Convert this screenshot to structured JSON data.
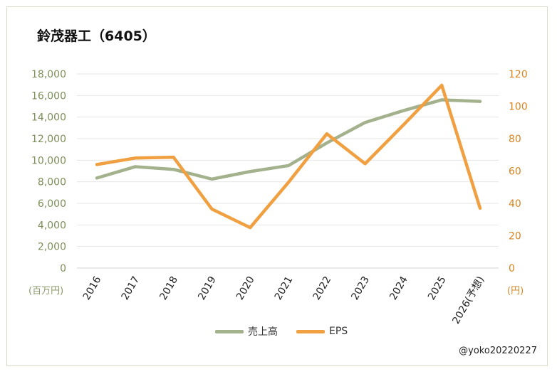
{
  "chart_data": {
    "type": "line",
    "title": "鈴茂器工（6405）",
    "categories": [
      "2016",
      "2017",
      "2018",
      "2019",
      "2020",
      "2021",
      "2022",
      "2023",
      "2024",
      "2025",
      "2026(予想)"
    ],
    "series": [
      {
        "name": "売上高",
        "axis": "left",
        "color": "#a3b18c",
        "values": [
          8350,
          9400,
          9150,
          8250,
          8950,
          9500,
          11600,
          13500,
          14600,
          15600,
          15450
        ]
      },
      {
        "name": "EPS",
        "axis": "right",
        "color": "#f0a040",
        "values": [
          64,
          68,
          68.5,
          36.5,
          25,
          53,
          83,
          64.5,
          88.5,
          113,
          37
        ]
      }
    ],
    "left_axis": {
      "min": 0,
      "max": 18000,
      "step": 2000,
      "tick_labels": [
        "0",
        "2,000",
        "4,000",
        "6,000",
        "8,000",
        "10,000",
        "12,000",
        "14,000",
        "16,000",
        "18,000"
      ],
      "unit": "(百万円)",
      "color": "#7d8f5a"
    },
    "right_axis": {
      "min": 0,
      "max": 120,
      "step": 20,
      "tick_labels": [
        "0",
        "20",
        "40",
        "60",
        "80",
        "100",
        "120"
      ],
      "unit": "(円)",
      "color": "#d7841f"
    },
    "grid": true,
    "legend_position": "bottom"
  },
  "credit": "@yoko20220227"
}
